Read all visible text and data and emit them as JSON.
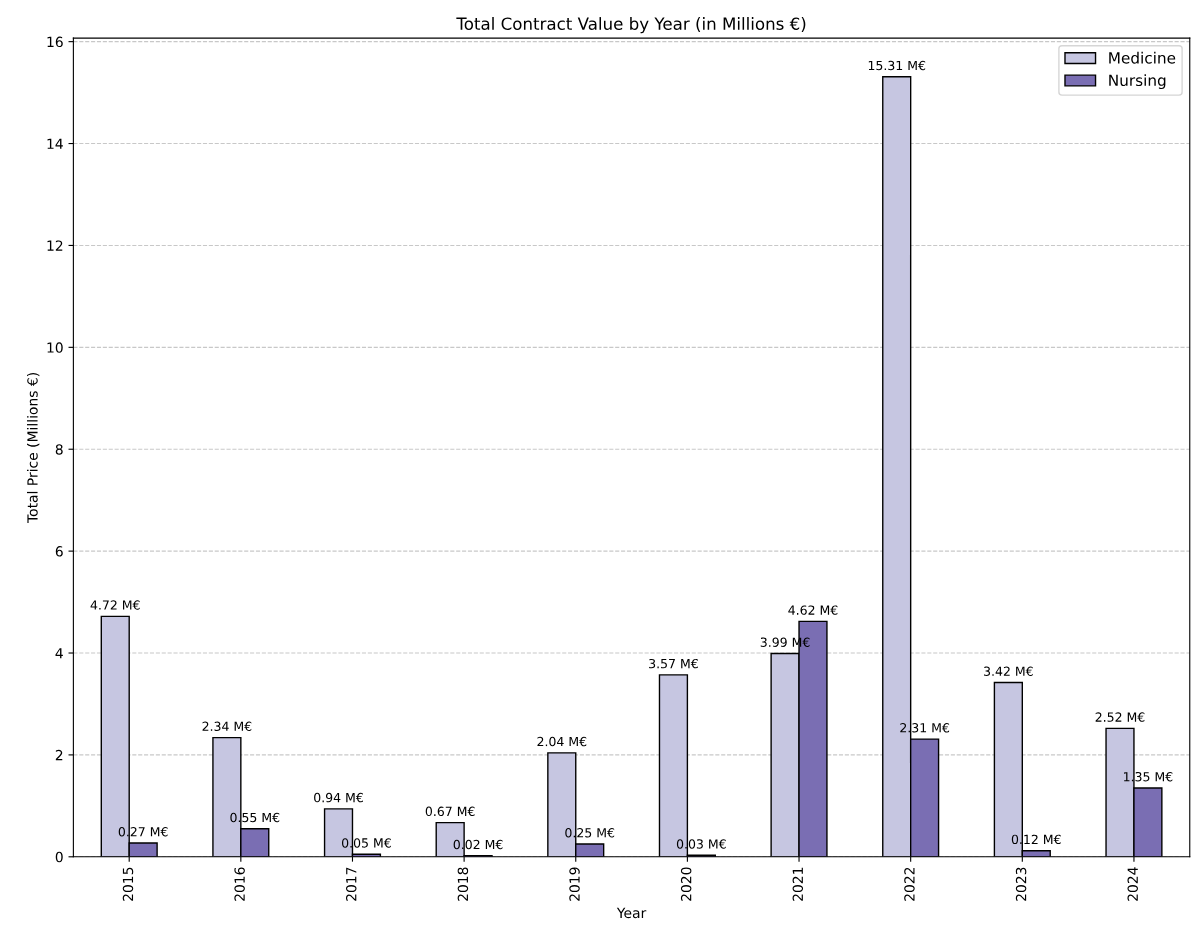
{
  "chart_data": {
    "type": "bar",
    "title": "Total Contract Value by Year (in Millions €)",
    "xlabel": "Year",
    "ylabel": "Total Price (Millions €)",
    "categories": [
      "2015",
      "2016",
      "2017",
      "2018",
      "2019",
      "2020",
      "2021",
      "2022",
      "2023",
      "2024"
    ],
    "series": [
      {
        "name": "Medicine",
        "color": "#c6c6e1",
        "values": [
          4.72,
          2.34,
          0.94,
          0.67,
          2.04,
          3.57,
          3.99,
          15.31,
          3.42,
          2.52
        ],
        "value_labels": [
          "4.72 M€",
          "2.34 M€",
          "0.94 M€",
          "0.67 M€",
          "2.04 M€",
          "3.57 M€",
          "3.99 M€",
          "15.31 M€",
          "3.42 M€",
          "2.52 M€"
        ]
      },
      {
        "name": "Nursing",
        "color": "#7a6eb3",
        "values": [
          0.27,
          0.55,
          0.05,
          0.02,
          0.25,
          0.03,
          4.62,
          2.31,
          0.12,
          1.35
        ],
        "value_labels": [
          "0.27 M€",
          "0.55 M€",
          "0.05 M€",
          "0.02 M€",
          "0.25 M€",
          "0.03 M€",
          "4.62 M€",
          "2.31 M€",
          "0.12 M€",
          "1.35 M€"
        ]
      }
    ],
    "ylim": [
      0,
      16.07
    ],
    "yticks": [
      0,
      2,
      4,
      6,
      8,
      10,
      12,
      14,
      16
    ],
    "grid": "y",
    "legend": "top right"
  }
}
